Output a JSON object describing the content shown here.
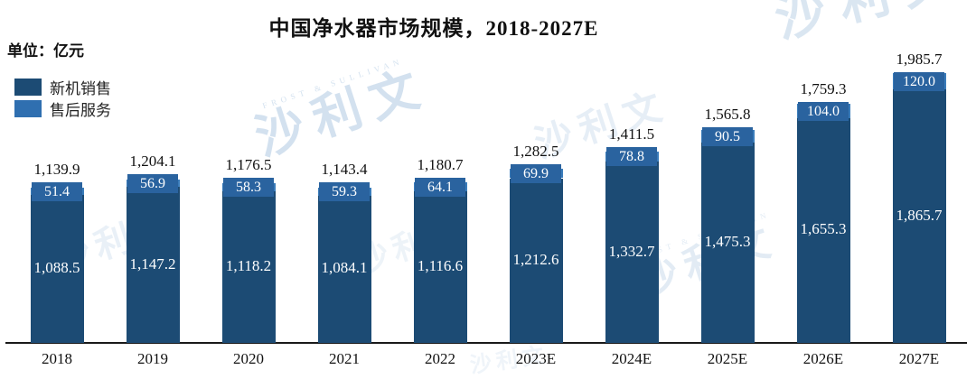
{
  "title": "中国净水器市场规模，2018-2027E",
  "unit_label": "单位：亿元",
  "legend": {
    "items": [
      {
        "label": "新机销售",
        "color": "#1c4b74"
      },
      {
        "label": "售后服务",
        "color": "#2f6fb0"
      }
    ]
  },
  "watermark": {
    "text": "沙利文",
    "subtext": "FROST & SULLIVAN"
  },
  "chart_data": {
    "type": "bar",
    "stacked": true,
    "title": "中国净水器市场规模，2018-2027E",
    "unit": "亿元",
    "grid": false,
    "legend_position": "top-left",
    "ylim": [
      0,
      2100
    ],
    "categories": [
      "2018",
      "2019",
      "2020",
      "2021",
      "2022",
      "2023E",
      "2024E",
      "2025E",
      "2026E",
      "2027E"
    ],
    "series": [
      {
        "name": "新机销售",
        "color": "#1c4b74",
        "values": [
          1088.5,
          1147.2,
          1118.2,
          1084.1,
          1116.6,
          1212.6,
          1332.7,
          1475.3,
          1655.3,
          1865.7
        ],
        "labels": [
          "1,088.5",
          "1,147.2",
          "1,118.2",
          "1,084.1",
          "1,116.6",
          "1,212.6",
          "1,332.7",
          "1,475.3",
          "1,655.3",
          "1,865.7"
        ]
      },
      {
        "name": "售后服务",
        "color": "#3a7cba",
        "label_bg": "#2a639f",
        "values": [
          51.4,
          56.9,
          58.3,
          59.3,
          64.1,
          69.9,
          78.8,
          90.5,
          104.0,
          120.0
        ],
        "labels": [
          "51.4",
          "56.9",
          "58.3",
          "59.3",
          "64.1",
          "69.9",
          "78.8",
          "90.5",
          "104.0",
          "120.0"
        ]
      }
    ],
    "totals": [
      1139.9,
      1204.1,
      1176.5,
      1143.4,
      1180.7,
      1282.5,
      1411.5,
      1565.8,
      1759.3,
      1985.7
    ],
    "total_labels": [
      "1,139.9",
      "1,204.1",
      "1,176.5",
      "1,143.4",
      "1,180.7",
      "1,282.5",
      "1,411.5",
      "1,565.8",
      "1,759.3",
      "1,985.7"
    ]
  }
}
